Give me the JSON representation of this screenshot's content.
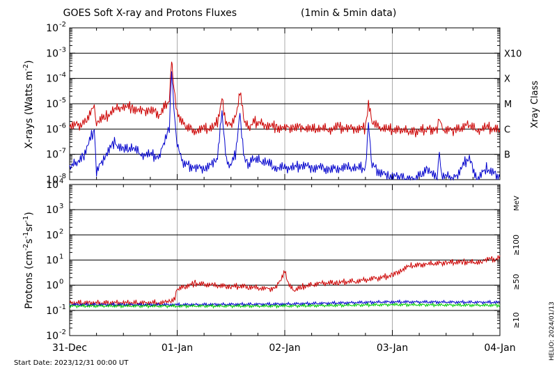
{
  "chart_data": [
    {
      "type": "line",
      "title": "GOES Soft X-ray and Protons Fluxes",
      "title_note": "(1min & 5min data)",
      "ylabel": "X-rays (Watts m",
      "ylabel_sup": "-2",
      "ylabel_close": ")",
      "yscale": "log",
      "ylim": [
        1e-08,
        0.01
      ],
      "y_ticks": [
        {
          "base": "10",
          "exp": "-8",
          "value": 1e-08
        },
        {
          "base": "10",
          "exp": "-7",
          "value": 1e-07
        },
        {
          "base": "10",
          "exp": "-6",
          "value": 1e-06
        },
        {
          "base": "10",
          "exp": "-5",
          "value": 1e-05
        },
        {
          "base": "10",
          "exp": "-4",
          "value": 0.0001
        },
        {
          "base": "10",
          "exp": "-3",
          "value": 0.001
        },
        {
          "base": "10",
          "exp": "-2",
          "value": 0.01
        }
      ],
      "right_axis_label": "Xray Class",
      "class_labels": [
        {
          "label": "X10",
          "value": 0.001
        },
        {
          "label": "X",
          "value": 0.0001
        },
        {
          "label": "M",
          "value": 1e-05
        },
        {
          "label": "C",
          "value": 1e-06
        },
        {
          "label": "B",
          "value": 1e-07
        }
      ],
      "grid": true,
      "series": [
        {
          "color": "#cc0000",
          "x": [
            "12-31 00:00",
            "12-31 03:00",
            "12-31 05:30",
            "12-31 06:00",
            "12-31 08:00",
            "12-31 10:00",
            "12-31 12:00",
            "12-31 14:00",
            "12-31 16:00",
            "12-31 18:00",
            "12-31 20:00",
            "12-31 21:00",
            "12-31 21:45",
            "12-31 22:15",
            "12-31 22:45",
            "12-31 23:00",
            "12-31 23:30",
            "01-01 00:00",
            "01-01 01:00",
            "01-01 02:00",
            "01-01 04:00",
            "01-01 06:00",
            "01-01 08:00",
            "01-01 09:00",
            "01-01 10:00",
            "01-01 11:00",
            "01-01 12:00",
            "01-01 13:00",
            "01-01 14:00",
            "01-01 15:00",
            "01-01 16:00",
            "01-01 17:00",
            "01-01 18:00",
            "01-01 20:00",
            "01-01 22:00",
            "01-02 00:00",
            "01-02 02:00",
            "01-02 04:00",
            "01-02 06:00",
            "01-02 08:00",
            "01-02 10:00",
            "01-02 12:00",
            "01-02 14:00",
            "01-02 16:00",
            "01-02 18:00",
            "01-02 18:40",
            "01-02 19:30",
            "01-02 21:00",
            "01-02 23:00",
            "01-03 02:00",
            "01-03 05:00",
            "01-03 08:00",
            "01-03 10:00",
            "01-03 10:30",
            "01-03 11:00",
            "01-03 14:00",
            "01-03 17:00",
            "01-03 19:00",
            "01-03 21:00",
            "01-04 00:00"
          ],
          "values": [
            1.5e-06,
            1.5e-06,
            8e-06,
            2e-06,
            3e-06,
            6e-06,
            8e-06,
            7e-06,
            5e-06,
            6e-06,
            4e-06,
            7e-06,
            1e-05,
            2e-05,
            0.0005,
            0.0001,
            2e-05,
            5e-06,
            2e-06,
            1.2e-06,
            9e-07,
            1e-06,
            1.2e-06,
            2e-06,
            1.5e-05,
            1.5e-06,
            1.5e-06,
            3e-06,
            3e-05,
            2e-06,
            1.2e-06,
            2e-06,
            1.8e-06,
            1.5e-06,
            1.2e-06,
            1.1e-06,
            1.2e-06,
            1.2e-06,
            1e-06,
            1.1e-06,
            1e-06,
            1.2e-06,
            1.1e-06,
            1.1e-06,
            1.1e-06,
            1e-05,
            2e-06,
            1.2e-06,
            1e-06,
            9e-07,
            8e-07,
            1e-06,
            1e-06,
            3e-06,
            1e-06,
            9e-07,
            1.5e-06,
            9e-07,
            1.2e-06,
            9e-07
          ]
        },
        {
          "color": "#0000cc",
          "x": [
            "12-31 00:00",
            "12-31 03:00",
            "12-31 05:30",
            "12-31 06:00",
            "12-31 08:00",
            "12-31 10:00",
            "12-31 12:00",
            "12-31 14:00",
            "12-31 16:00",
            "12-31 18:00",
            "12-31 20:00",
            "12-31 21:00",
            "12-31 21:45",
            "12-31 22:15",
            "12-31 22:45",
            "12-31 23:00",
            "12-31 23:30",
            "01-01 00:00",
            "01-01 01:00",
            "01-01 02:00",
            "01-01 04:00",
            "01-01 06:00",
            "01-01 08:00",
            "01-01 09:00",
            "01-01 10:00",
            "01-01 11:00",
            "01-01 12:00",
            "01-01 13:00",
            "01-01 14:00",
            "01-01 15:00",
            "01-01 16:00",
            "01-01 17:00",
            "01-01 18:00",
            "01-01 20:00",
            "01-01 22:00",
            "01-02 00:00",
            "01-02 02:00",
            "01-02 04:00",
            "01-02 06:00",
            "01-02 08:00",
            "01-02 10:00",
            "01-02 12:00",
            "01-02 14:00",
            "01-02 16:00",
            "01-02 18:00",
            "01-02 18:40",
            "01-02 19:30",
            "01-02 21:00",
            "01-02 23:00",
            "01-03 02:00",
            "01-03 05:00",
            "01-03 08:00",
            "01-03 10:00",
            "01-03 10:30",
            "01-03 11:00",
            "01-03 14:00",
            "01-03 17:00",
            "01-03 19:00",
            "01-03 21:00",
            "01-04 00:00"
          ],
          "values": [
            3e-08,
            8e-08,
            1e-06,
            2e-08,
            1e-07,
            3e-07,
            1.5e-07,
            2e-07,
            1e-07,
            1e-07,
            8e-08,
            3e-07,
            8e-07,
            1e-06,
            0.0002,
            3e-05,
            2e-06,
            3e-07,
            6e-08,
            4e-08,
            3e-08,
            3e-08,
            4e-08,
            8e-08,
            5e-06,
            5e-08,
            4e-08,
            1e-07,
            4e-06,
            6e-08,
            4e-08,
            8e-08,
            6e-08,
            5e-08,
            3e-08,
            3e-08,
            3e-08,
            4e-08,
            3e-08,
            3e-08,
            2.5e-08,
            3e-08,
            3e-08,
            3e-08,
            3e-08,
            1.5e-06,
            4e-08,
            2e-08,
            1.5e-08,
            1.2e-08,
            1e-08,
            3e-08,
            1e-08,
            1e-07,
            1.5e-08,
            1.2e-08,
            8e-08,
            1e-08,
            3e-08,
            1.2e-08
          ]
        }
      ]
    },
    {
      "type": "line",
      "ylabel_parts": [
        {
          "t": "Protons (cm",
          "sup": false
        },
        {
          "t": "-2",
          "sup": true
        },
        {
          "t": "s",
          "sup": false
        },
        {
          "t": "-1",
          "sup": true
        },
        {
          "t": "sr",
          "sup": false
        },
        {
          "t": "-1",
          "sup": true
        },
        {
          "t": ")",
          "sup": false
        }
      ],
      "yscale": "log",
      "ylim": [
        0.01,
        10000
      ],
      "y_ticks": [
        {
          "base": "10",
          "exp": "-2",
          "value": 0.01
        },
        {
          "base": "10",
          "exp": "-1",
          "value": 0.1
        },
        {
          "base": "10",
          "exp": "0",
          "value": 1
        },
        {
          "base": "10",
          "exp": "1",
          "value": 10
        },
        {
          "base": "10",
          "exp": "2",
          "value": 100
        },
        {
          "base": "10",
          "exp": "3",
          "value": 1000
        },
        {
          "base": "10",
          "exp": "4",
          "value": 10000
        }
      ],
      "threshold": 10,
      "grid": true,
      "right_unit": "MeV",
      "legend": [
        {
          "label": "≥100",
          "color": "#00cc00"
        },
        {
          "label": "≥50",
          "color": "#0000cc"
        },
        {
          "label": "≥10",
          "color": "#cc0000"
        }
      ],
      "series": [
        {
          "name": "≥10",
          "color": "#cc0000",
          "x": [
            "12-31 00:00",
            "12-31 12:00",
            "12-31 20:00",
            "12-31 22:00",
            "12-31 23:30",
            "01-01 00:00",
            "01-01 04:00",
            "01-01 08:00",
            "01-01 12:00",
            "01-01 16:00",
            "01-01 20:00",
            "01-01 22:00",
            "01-01 23:00",
            "01-02 00:00",
            "01-02 01:00",
            "01-02 02:00",
            "01-02 04:00",
            "01-02 08:00",
            "01-02 12:00",
            "01-02 16:00",
            "01-02 20:00",
            "01-03 00:00",
            "01-03 02:00",
            "01-03 04:00",
            "01-03 08:00",
            "01-03 12:00",
            "01-03 16:00",
            "01-03 20:00",
            "01-03 21:00",
            "01-03 23:00",
            "01-04 00:00"
          ],
          "values": [
            0.2,
            0.2,
            0.2,
            0.22,
            0.3,
            0.7,
            1.2,
            1.0,
            0.9,
            0.9,
            0.7,
            0.8,
            1.6,
            3.5,
            1.0,
            0.6,
            0.9,
            1.2,
            1.3,
            1.5,
            1.8,
            2.5,
            4,
            6,
            7,
            8,
            8.5,
            8,
            11,
            11,
            15
          ]
        },
        {
          "name": "≥50",
          "color": "#0000cc",
          "x": [
            "12-31 00:00",
            "01-01 00:00",
            "01-02 00:00",
            "01-03 00:00",
            "01-04 00:00"
          ],
          "values": [
            0.17,
            0.17,
            0.18,
            0.22,
            0.21
          ]
        },
        {
          "name": "≥100",
          "color": "#00cc00",
          "x": [
            "12-31 00:00",
            "01-01 00:00",
            "01-02 00:00",
            "01-03 00:00",
            "01-04 00:00"
          ],
          "values": [
            0.15,
            0.15,
            0.15,
            0.17,
            0.16
          ]
        }
      ]
    }
  ],
  "x_axis": {
    "start": "12-31 00:00",
    "end": "01-04 00:00",
    "ticks": [
      {
        "label": "31-Dec",
        "x": "12-31 00:00"
      },
      {
        "label": "01-Jan",
        "x": "01-01 00:00"
      },
      {
        "label": "02-Jan",
        "x": "01-02 00:00"
      },
      {
        "label": "03-Jan",
        "x": "01-03 00:00"
      },
      {
        "label": "04-Jan",
        "x": "01-04 00:00"
      }
    ]
  },
  "footer": {
    "start_date": "Start Date: 2023/12/31 00:00 UT",
    "credit": "HELIO: 2024/01/13"
  }
}
